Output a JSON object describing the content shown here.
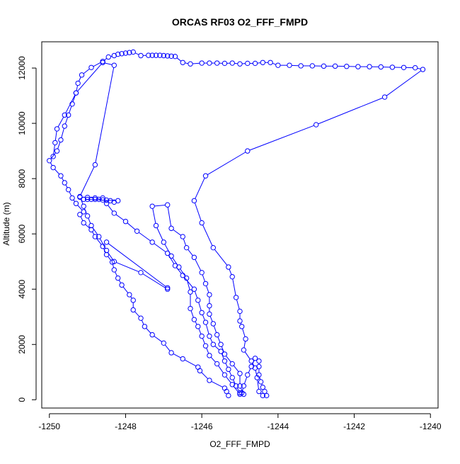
{
  "chart_data": {
    "type": "line",
    "title": "ORCAS RF03 O2_FFF_FMPD",
    "xlabel": "O2_FFF_FMPD",
    "ylabel": "Altitude (m)",
    "xlim": [
      -1250.2,
      -1239.8
    ],
    "ylim": [
      -300,
      12950
    ],
    "x_ticks": [
      -1250,
      -1248,
      -1246,
      -1244,
      -1242,
      -1240
    ],
    "x_tick_labels": [
      "-1250",
      "-1248",
      "-1246",
      "-1244",
      "-1242",
      "-1240"
    ],
    "y_ticks": [
      0,
      2000,
      4000,
      6000,
      8000,
      10000,
      12000
    ],
    "y_tick_labels": [
      "0",
      "2000",
      "4000",
      "6000",
      "8000",
      "10000",
      "12000"
    ],
    "grid": false,
    "marker": "open-circle",
    "series": [
      {
        "color": "#0000ff",
        "points": [
          [
            -1245.3,
            150
          ],
          [
            -1245.35,
            300
          ],
          [
            -1245.4,
            420
          ],
          [
            -1245.8,
            700
          ],
          [
            -1246.05,
            1050
          ],
          [
            -1246.1,
            1180
          ],
          [
            -1246.5,
            1480
          ],
          [
            -1246.8,
            1700
          ],
          [
            -1247.0,
            2050
          ],
          [
            -1247.3,
            2350
          ],
          [
            -1247.5,
            2650
          ],
          [
            -1247.6,
            2950
          ],
          [
            -1247.8,
            3250
          ],
          [
            -1247.8,
            3600
          ],
          [
            -1247.9,
            3800
          ],
          [
            -1248.1,
            4150
          ],
          [
            -1248.2,
            4400
          ],
          [
            -1248.3,
            4700
          ],
          [
            -1248.35,
            4980
          ],
          [
            -1248.5,
            5250
          ],
          [
            -1248.6,
            5550
          ],
          [
            -1248.8,
            5900
          ],
          [
            -1248.9,
            6150
          ],
          [
            -1249.1,
            6400
          ],
          [
            -1249.2,
            6700
          ],
          [
            -1249.1,
            6800
          ],
          [
            -1249.3,
            7100
          ],
          [
            -1249.4,
            7300
          ],
          [
            -1249.5,
            7600
          ],
          [
            -1249.6,
            7850
          ],
          [
            -1249.7,
            8100
          ],
          [
            -1249.9,
            8400
          ],
          [
            -1250.0,
            8650
          ],
          [
            -1249.8,
            9000
          ],
          [
            -1249.7,
            9400
          ],
          [
            -1249.6,
            9900
          ],
          [
            -1249.5,
            10300
          ],
          [
            -1249.4,
            10700
          ],
          [
            -1249.3,
            11100
          ],
          [
            -1249.25,
            11450
          ],
          [
            -1249.15,
            11750
          ],
          [
            -1248.9,
            12020
          ],
          [
            -1248.6,
            12240
          ],
          [
            -1248.45,
            12400
          ],
          [
            -1248.3,
            12450
          ],
          [
            -1248.2,
            12500
          ],
          [
            -1248.1,
            12520
          ],
          [
            -1248.0,
            12540
          ],
          [
            -1247.9,
            12560
          ],
          [
            -1247.8,
            12580
          ],
          [
            -1247.6,
            12450
          ],
          [
            -1247.4,
            12460
          ],
          [
            -1247.3,
            12460
          ],
          [
            -1247.2,
            12460
          ],
          [
            -1247.1,
            12460
          ],
          [
            -1247.0,
            12450
          ],
          [
            -1246.9,
            12440
          ],
          [
            -1246.8,
            12430
          ],
          [
            -1246.7,
            12420
          ],
          [
            -1246.5,
            12200
          ],
          [
            -1246.3,
            12150
          ],
          [
            -1246.0,
            12180
          ],
          [
            -1245.8,
            12180
          ],
          [
            -1245.6,
            12180
          ],
          [
            -1245.4,
            12170
          ],
          [
            -1245.2,
            12180
          ],
          [
            -1245.0,
            12150
          ],
          [
            -1244.8,
            12170
          ],
          [
            -1244.6,
            12170
          ],
          [
            -1244.4,
            12200
          ],
          [
            -1244.2,
            12200
          ],
          [
            -1244.0,
            12100
          ],
          [
            -1243.7,
            12100
          ],
          [
            -1243.4,
            12080
          ],
          [
            -1243.1,
            12080
          ],
          [
            -1242.8,
            12070
          ],
          [
            -1242.5,
            12070
          ],
          [
            -1242.2,
            12060
          ],
          [
            -1241.9,
            12050
          ],
          [
            -1241.6,
            12050
          ],
          [
            -1241.3,
            12040
          ],
          [
            -1241.0,
            12030
          ],
          [
            -1240.7,
            12020
          ],
          [
            -1240.4,
            12010
          ],
          [
            -1240.2,
            11950
          ],
          [
            -1241.2,
            10950
          ],
          [
            -1243.0,
            9950
          ],
          [
            -1244.8,
            9000
          ],
          [
            -1245.9,
            8100
          ],
          [
            -1246.2,
            7200
          ],
          [
            -1246.0,
            6400
          ],
          [
            -1245.7,
            5500
          ],
          [
            -1245.3,
            4800
          ],
          [
            -1245.2,
            4450
          ],
          [
            -1245.1,
            3700
          ],
          [
            -1245.0,
            3200
          ],
          [
            -1245.0,
            2850
          ],
          [
            -1244.95,
            2650
          ],
          [
            -1244.85,
            2200
          ],
          [
            -1244.9,
            1800
          ],
          [
            -1244.7,
            1400
          ],
          [
            -1244.6,
            1150
          ],
          [
            -1244.55,
            800
          ],
          [
            -1244.5,
            300
          ],
          [
            -1244.4,
            150
          ]
        ]
      },
      {
        "color": "#0000ff",
        "points": [
          [
            -1244.3,
            150
          ],
          [
            -1244.35,
            300
          ],
          [
            -1244.4,
            450
          ],
          [
            -1244.45,
            650
          ],
          [
            -1244.5,
            900
          ],
          [
            -1244.5,
            1200
          ],
          [
            -1244.5,
            1400
          ],
          [
            -1244.6,
            1500
          ],
          [
            -1244.7,
            1200
          ],
          [
            -1244.8,
            900
          ],
          [
            -1244.9,
            500
          ],
          [
            -1244.95,
            250
          ],
          [
            -1245.0,
            200
          ],
          [
            -1245.2,
            550
          ],
          [
            -1245.4,
            900
          ],
          [
            -1245.6,
            1300
          ],
          [
            -1245.8,
            1600
          ],
          [
            -1245.9,
            1950
          ],
          [
            -1246.0,
            2300
          ],
          [
            -1246.1,
            2650
          ],
          [
            -1246.2,
            2900
          ],
          [
            -1246.3,
            3300
          ],
          [
            -1246.3,
            3900
          ],
          [
            -1246.4,
            4400
          ],
          [
            -1246.6,
            4800
          ],
          [
            -1246.8,
            5200
          ],
          [
            -1247.0,
            5700
          ],
          [
            -1247.2,
            6300
          ],
          [
            -1247.3,
            7000
          ],
          [
            -1246.9,
            7050
          ],
          [
            -1246.8,
            6200
          ],
          [
            -1246.5,
            5900
          ],
          [
            -1246.4,
            5500
          ],
          [
            -1246.2,
            5150
          ],
          [
            -1246.0,
            4600
          ],
          [
            -1245.9,
            4200
          ],
          [
            -1245.8,
            3800
          ],
          [
            -1245.8,
            3400
          ],
          [
            -1245.8,
            3100
          ],
          [
            -1245.7,
            2750
          ],
          [
            -1245.6,
            2350
          ],
          [
            -1245.5,
            2000
          ],
          [
            -1245.4,
            1650
          ],
          [
            -1245.2,
            1300
          ],
          [
            -1245.0,
            950
          ],
          [
            -1245.0,
            500
          ],
          [
            -1244.9,
            200
          ]
        ]
      },
      {
        "color": "#0000ff",
        "points": [
          [
            -1245.0,
            250
          ],
          [
            -1245.1,
            500
          ],
          [
            -1245.2,
            800
          ],
          [
            -1245.3,
            1100
          ],
          [
            -1245.4,
            1400
          ],
          [
            -1245.5,
            1750
          ],
          [
            -1245.7,
            2000
          ],
          [
            -1245.8,
            2300
          ],
          [
            -1245.9,
            2800
          ],
          [
            -1246.0,
            3150
          ],
          [
            -1246.1,
            3600
          ],
          [
            -1246.2,
            4000
          ],
          [
            -1246.5,
            4500
          ],
          [
            -1246.7,
            4850
          ],
          [
            -1246.9,
            5300
          ],
          [
            -1247.3,
            5700
          ],
          [
            -1247.7,
            6100
          ],
          [
            -1248.0,
            6450
          ],
          [
            -1248.3,
            6750
          ],
          [
            -1248.5,
            7100
          ],
          [
            -1248.6,
            7300
          ],
          [
            -1248.7,
            7250
          ],
          [
            -1248.8,
            7250
          ],
          [
            -1248.9,
            7250
          ],
          [
            -1249.0,
            7250
          ],
          [
            -1249.1,
            7250
          ],
          [
            -1248.2,
            7200
          ],
          [
            -1248.3,
            7150
          ],
          [
            -1248.4,
            7200
          ],
          [
            -1248.5,
            7220
          ],
          [
            -1248.6,
            7230
          ],
          [
            -1248.8,
            7300
          ],
          [
            -1249.0,
            7320
          ],
          [
            -1249.2,
            7330
          ]
        ]
      },
      {
        "color": "#0000ff",
        "points": [
          [
            -1248.5,
            5700
          ],
          [
            -1246.9,
            4050
          ],
          [
            -1246.9,
            4000
          ],
          [
            -1247.6,
            4600
          ],
          [
            -1248.3,
            5000
          ],
          [
            -1248.5,
            5400
          ],
          [
            -1248.7,
            5900
          ],
          [
            -1248.9,
            6300
          ],
          [
            -1249.0,
            6650
          ],
          [
            -1249.1,
            7000
          ],
          [
            -1249.2,
            7350
          ],
          [
            -1248.8,
            8500
          ],
          [
            -1248.3,
            12100
          ],
          [
            -1248.6,
            12200
          ],
          [
            -1249.3,
            11100
          ],
          [
            -1249.6,
            10300
          ],
          [
            -1249.8,
            9800
          ],
          [
            -1249.85,
            9300
          ],
          [
            -1249.9,
            8800
          ]
        ]
      }
    ]
  }
}
